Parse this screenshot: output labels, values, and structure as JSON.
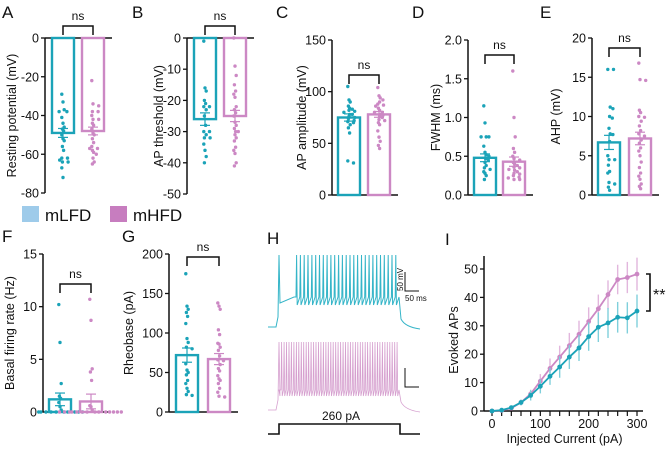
{
  "colors": {
    "mLFD": "#1ba3b8",
    "mHFD": "#cc88c4",
    "mLFD_legend": "#9ecbea",
    "mHFD_legend": "#c77dbf"
  },
  "legend": {
    "items": [
      {
        "label": "mLFD"
      },
      {
        "label": "mHFD"
      }
    ]
  },
  "chart_data": [
    {
      "id": "A",
      "type": "bar",
      "letter": "A",
      "ylabel": "Resting potential (mV)",
      "ylim": [
        -80,
        0
      ],
      "yticks": [
        0,
        -20,
        -40,
        -60,
        -80
      ],
      "categories": [
        "mLFD",
        "mHFD"
      ],
      "means": [
        -49,
        -48
      ],
      "sem": [
        2.3,
        2.0
      ],
      "significance": "ns",
      "points": {
        "mLFD": [
          -29,
          -33,
          -37,
          -38,
          -38,
          -41,
          -44,
          -46,
          -47,
          -48,
          -50,
          -52,
          -53,
          -56,
          -58,
          -62,
          -62,
          -63,
          -64,
          -64,
          -67,
          -72
        ],
        "mHFD": [
          -22,
          -34,
          -35,
          -38,
          -38,
          -40,
          -42,
          -42,
          -44,
          -45,
          -47,
          -49,
          -50,
          -52,
          -54,
          -56,
          -57,
          -57,
          -58,
          -59,
          -60,
          -62,
          -64,
          -65
        ]
      }
    },
    {
      "id": "B",
      "type": "bar",
      "letter": "B",
      "ylabel": "AP threshold (mV)",
      "ylim": [
        -50,
        0
      ],
      "yticks": [
        0,
        -10,
        -20,
        -30,
        -40,
        -50
      ],
      "categories": [
        "mLFD",
        "mHFD"
      ],
      "means": [
        -26,
        -25
      ],
      "sem": [
        2.0,
        1.8
      ],
      "significance": "ns",
      "points": {
        "mLFD": [
          -1,
          -16,
          -17,
          -20,
          -21,
          -22,
          -22,
          -23,
          -25,
          -28,
          -30,
          -30,
          -31,
          -32,
          -32,
          -34,
          -36,
          -38,
          -40
        ],
        "mHFD": [
          0,
          -9,
          -12,
          -15,
          -17,
          -18,
          -19,
          -22,
          -23,
          -24,
          -25,
          -27,
          -28,
          -29,
          -30,
          -30,
          -31,
          -32,
          -33,
          -35,
          -36,
          -37,
          -40,
          -41
        ]
      }
    },
    {
      "id": "C",
      "type": "bar",
      "letter": "C",
      "ylabel": "AP amplitude (mV)",
      "ylim": [
        0,
        150
      ],
      "yticks": [
        0,
        50,
        100,
        150
      ],
      "categories": [
        "mLFD",
        "mHFD"
      ],
      "means": [
        75,
        78
      ],
      "sem": [
        3.5,
        2.8
      ],
      "significance": "ns",
      "points": {
        "mLFD": [
          105,
          92,
          90,
          86,
          84,
          83,
          82,
          81,
          80,
          78,
          78,
          76,
          75,
          74,
          72,
          71,
          70,
          68,
          65,
          60,
          33,
          31
        ],
        "mHFD": [
          104,
          96,
          94,
          92,
          90,
          88,
          87,
          86,
          84,
          82,
          80,
          80,
          78,
          77,
          76,
          75,
          73,
          72,
          70,
          68,
          62,
          56,
          52,
          48,
          45
        ]
      }
    },
    {
      "id": "D",
      "type": "bar",
      "letter": "D",
      "ylabel": "FWHM (ms)",
      "ylim": [
        0,
        2.0
      ],
      "yticks": [
        0.0,
        0.5,
        1.0,
        1.5,
        2.0
      ],
      "categories": [
        "mLFD",
        "mHFD"
      ],
      "means": [
        0.48,
        0.43
      ],
      "sem": [
        0.05,
        0.06
      ],
      "significance": "ns",
      "points": {
        "mLFD": [
          1.15,
          0.93,
          0.75,
          0.75,
          0.75,
          0.63,
          0.55,
          0.52,
          0.5,
          0.47,
          0.45,
          0.42,
          0.38,
          0.35,
          0.33,
          0.3,
          0.28,
          0.25,
          0.2
        ],
        "mHFD": [
          1.6,
          1.0,
          0.75,
          0.6,
          0.55,
          0.5,
          0.47,
          0.45,
          0.42,
          0.4,
          0.38,
          0.36,
          0.35,
          0.33,
          0.32,
          0.3,
          0.28,
          0.27,
          0.25,
          0.23,
          0.22,
          0.2,
          0.2
        ]
      }
    },
    {
      "id": "E",
      "type": "bar",
      "letter": "E",
      "ylabel": "AHP (mV)",
      "ylim": [
        0,
        20
      ],
      "yticks": [
        0,
        5,
        10,
        15,
        20
      ],
      "categories": [
        "mLFD",
        "mHFD"
      ],
      "means": [
        6.7,
        7.2
      ],
      "sem": [
        0.9,
        0.8
      ],
      "significance": "ns",
      "points": {
        "mLFD": [
          16,
          16,
          11.2,
          11,
          10,
          9.8,
          8.5,
          7.8,
          7.7,
          6.8,
          5,
          4.5,
          4.5,
          3.8,
          3,
          2.8,
          1.6,
          1.4,
          1.0,
          0.6
        ],
        "mHFD": [
          16.8,
          14.7,
          14.6,
          10.8,
          10.5,
          10,
          9.9,
          9.4,
          8.8,
          8.2,
          7.8,
          7.5,
          7,
          6.6,
          6,
          5.6,
          5,
          4.2,
          3.5,
          2.8,
          2.4,
          2,
          1.4,
          1.1,
          0.8
        ]
      }
    },
    {
      "id": "F",
      "type": "bar",
      "letter": "F",
      "ylabel": "Basal firing rate (Hz)",
      "ylim": [
        0,
        15
      ],
      "yticks": [
        0,
        5,
        10,
        15
      ],
      "categories": [
        "mLFD",
        "mHFD"
      ],
      "means": [
        1.2,
        1.0
      ],
      "sem": [
        0.6,
        0.7
      ],
      "significance": "ns",
      "points": {
        "mLFD": [
          10.2,
          6.6,
          2.7,
          1.5,
          1.3,
          0.9,
          0.5,
          0.2,
          0,
          0,
          0,
          0,
          0,
          0,
          0,
          0,
          0,
          0
        ],
        "mHFD": [
          10.7,
          8.7,
          4.1,
          3.8,
          3.0,
          0.6,
          0.5,
          0.2,
          0,
          0,
          0,
          0,
          0,
          0,
          0,
          0,
          0,
          0,
          0,
          0,
          0,
          0
        ]
      }
    },
    {
      "id": "G",
      "type": "bar",
      "letter": "G",
      "ylabel": "Rheobase (pA)",
      "ylim": [
        0,
        200
      ],
      "yticks": [
        0,
        50,
        100,
        150,
        200
      ],
      "categories": [
        "mLFD",
        "mHFD"
      ],
      "means": [
        72,
        67
      ],
      "sem": [
        9,
        7
      ],
      "significance": "ns",
      "points": {
        "mLFD": [
          175,
          134,
          130,
          126,
          121,
          112,
          93,
          88,
          82,
          80,
          61,
          53,
          50,
          47,
          40,
          36,
          30,
          26,
          22,
          21
        ],
        "mHFD": [
          138,
          134,
          130,
          104,
          98,
          87,
          86,
          82,
          78,
          71,
          66,
          65,
          60,
          55,
          52,
          46,
          42,
          40,
          36,
          30,
          25,
          20,
          19
        ]
      }
    },
    {
      "id": "I",
      "type": "line",
      "letter": "I",
      "xlabel": "Injected Current (pA)",
      "ylabel": "Evoked APs",
      "xlim": [
        0,
        300
      ],
      "ylim": [
        0,
        50
      ],
      "xticks": [
        0,
        100,
        200,
        300
      ],
      "yticks": [
        0,
        10,
        20,
        30,
        40,
        50
      ],
      "x": [
        0,
        20,
        40,
        60,
        80,
        100,
        120,
        140,
        160,
        180,
        200,
        220,
        240,
        260,
        280,
        300
      ],
      "series": [
        {
          "name": "mHFD",
          "values": [
            0,
            0.2,
            1,
            3,
            6,
            10.5,
            15,
            19,
            23,
            27,
            31.5,
            36,
            41,
            46.3,
            47,
            48.2
          ],
          "sem": [
            0,
            0.3,
            0.6,
            1,
            1.5,
            2.5,
            3.5,
            4,
            4.5,
            4.8,
            5,
            5,
            5,
            5.2,
            5.5,
            5.8
          ]
        },
        {
          "name": "mLFD",
          "values": [
            0,
            0.3,
            1.2,
            3,
            5.5,
            8.7,
            12.2,
            15.5,
            19,
            22.2,
            26.2,
            29.5,
            31,
            33,
            32.8,
            35.2
          ],
          "sem": [
            0,
            0.3,
            0.6,
            1,
            1.8,
            2.5,
            3,
            3.8,
            4.2,
            4.6,
            5,
            5.2,
            5.3,
            5.4,
            5.5,
            5.8
          ]
        }
      ],
      "significance": "**"
    }
  ],
  "traces": {
    "letter": "H",
    "scalebar": {
      "v_label": "50 mV",
      "t_label": "50 ms"
    },
    "stimulus_label": "260 pA",
    "mLFD_spike_count": 28,
    "mHFD_spike_count": 48
  }
}
